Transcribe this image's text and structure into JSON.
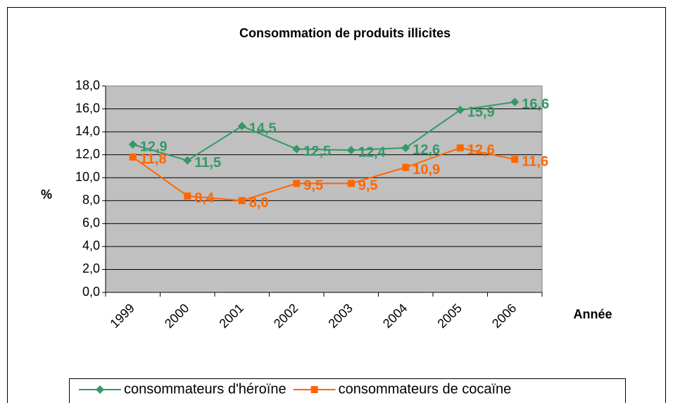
{
  "chart_data": {
    "type": "line",
    "title": "Consommation de produits illicites",
    "x_label": "Année",
    "y_label": "%",
    "categories": [
      "1999",
      "2000",
      "2001",
      "2002",
      "2003",
      "2004",
      "2005",
      "2006"
    ],
    "series": [
      {
        "name": "consommateurs d'héroïne",
        "color": "#339966",
        "marker": "diamond",
        "values": [
          12.9,
          11.5,
          14.5,
          12.5,
          12.4,
          12.6,
          15.9,
          16.6
        ],
        "value_labels": [
          "12,9",
          "11,5",
          "14,5",
          "12,5",
          "12,4",
          "12,6",
          "15,9",
          "16,6"
        ]
      },
      {
        "name": "consommateurs de cocaïne",
        "color": "#ff6600",
        "marker": "square",
        "values": [
          11.8,
          8.4,
          8.0,
          9.5,
          9.5,
          10.9,
          12.6,
          11.6
        ],
        "value_labels": [
          "11,8",
          "8,4",
          "8,0",
          "9,5",
          "9,5",
          "10,9",
          "12,6",
          "11,6"
        ]
      }
    ],
    "ylim": [
      0,
      18
    ],
    "yticks": [
      {
        "value": 0,
        "label": "0,0"
      },
      {
        "value": 2,
        "label": "2,0"
      },
      {
        "value": 4,
        "label": "4,0"
      },
      {
        "value": 6,
        "label": "6,0"
      },
      {
        "value": 8,
        "label": "8,0"
      },
      {
        "value": 10,
        "label": "10,0"
      },
      {
        "value": 12,
        "label": "12,0"
      },
      {
        "value": 14,
        "label": "14,0"
      },
      {
        "value": 16,
        "label": "16,0"
      },
      {
        "value": 18,
        "label": "18,0"
      }
    ],
    "grid": true,
    "plot_background": "#c0c0c0",
    "legend_position": "bottom"
  }
}
